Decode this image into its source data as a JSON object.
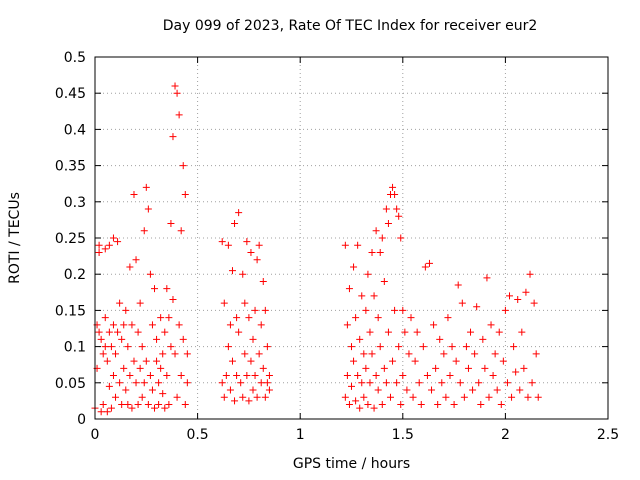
{
  "chart_data": {
    "type": "scatter",
    "title": "Day 099 of 2023, Rate Of TEC Index for receiver eur2",
    "xlabel": "GPS time / hours",
    "ylabel": "ROTI / TECUs",
    "xlim": [
      0,
      2.5
    ],
    "ylim": [
      0,
      0.5
    ],
    "xticks": [
      "0",
      "0.5",
      "1",
      "1.5",
      "2",
      "2.5"
    ],
    "yticks": [
      "0",
      "0.05",
      "0.1",
      "0.15",
      "0.2",
      "0.25",
      "0.3",
      "0.35",
      "0.4",
      "0.45",
      "0.5"
    ],
    "grid": true,
    "marker": "+",
    "color": "#ff0000",
    "series": [
      {
        "points": [
          [
            0.0,
            0.015
          ],
          [
            0.01,
            0.13
          ],
          [
            0.01,
            0.07
          ],
          [
            0.02,
            0.12
          ],
          [
            0.02,
            0.23
          ],
          [
            0.02,
            0.24
          ],
          [
            0.03,
            0.11
          ],
          [
            0.03,
            0.01
          ],
          [
            0.04,
            0.09
          ],
          [
            0.04,
            0.02
          ],
          [
            0.05,
            0.14
          ],
          [
            0.05,
            0.1
          ],
          [
            0.05,
            0.235
          ],
          [
            0.06,
            0.08
          ],
          [
            0.06,
            0.01
          ],
          [
            0.07,
            0.12
          ],
          [
            0.07,
            0.24
          ],
          [
            0.07,
            0.045
          ],
          [
            0.08,
            0.1
          ],
          [
            0.08,
            0.015
          ],
          [
            0.09,
            0.13
          ],
          [
            0.09,
            0.25
          ],
          [
            0.09,
            0.06
          ],
          [
            0.1,
            0.09
          ],
          [
            0.1,
            0.03
          ],
          [
            0.11,
            0.245
          ],
          [
            0.11,
            0.12
          ],
          [
            0.12,
            0.16
          ],
          [
            0.12,
            0.05
          ],
          [
            0.13,
            0.02
          ],
          [
            0.13,
            0.11
          ],
          [
            0.14,
            0.13
          ],
          [
            0.14,
            0.07
          ],
          [
            0.15,
            0.15
          ],
          [
            0.15,
            0.04
          ],
          [
            0.16,
            0.1
          ],
          [
            0.16,
            0.02
          ],
          [
            0.17,
            0.21
          ],
          [
            0.17,
            0.06
          ],
          [
            0.18,
            0.13
          ],
          [
            0.18,
            0.015
          ],
          [
            0.19,
            0.31
          ],
          [
            0.19,
            0.08
          ],
          [
            0.2,
            0.22
          ],
          [
            0.2,
            0.05
          ],
          [
            0.21,
            0.12
          ],
          [
            0.21,
            0.02
          ],
          [
            0.22,
            0.16
          ],
          [
            0.22,
            0.07
          ],
          [
            0.23,
            0.1
          ],
          [
            0.23,
            0.03
          ],
          [
            0.24,
            0.26
          ],
          [
            0.24,
            0.05
          ],
          [
            0.25,
            0.32
          ],
          [
            0.25,
            0.08
          ],
          [
            0.26,
            0.29
          ],
          [
            0.26,
            0.02
          ],
          [
            0.27,
            0.2
          ],
          [
            0.27,
            0.06
          ],
          [
            0.28,
            0.13
          ],
          [
            0.28,
            0.04
          ],
          [
            0.29,
            0.18
          ],
          [
            0.29,
            0.015
          ],
          [
            0.3,
            0.08
          ],
          [
            0.3,
            0.11
          ],
          [
            0.31,
            0.05
          ],
          [
            0.31,
            0.02
          ],
          [
            0.32,
            0.14
          ],
          [
            0.32,
            0.07
          ],
          [
            0.33,
            0.09
          ],
          [
            0.33,
            0.035
          ],
          [
            0.34,
            0.12
          ],
          [
            0.34,
            0.015
          ],
          [
            0.35,
            0.18
          ],
          [
            0.35,
            0.06
          ],
          [
            0.36,
            0.14
          ],
          [
            0.36,
            0.02
          ],
          [
            0.37,
            0.27
          ],
          [
            0.37,
            0.1
          ],
          [
            0.38,
            0.39
          ],
          [
            0.38,
            0.165
          ],
          [
            0.39,
            0.46
          ],
          [
            0.39,
            0.09
          ],
          [
            0.4,
            0.45
          ],
          [
            0.4,
            0.03
          ],
          [
            0.41,
            0.42
          ],
          [
            0.41,
            0.13
          ],
          [
            0.42,
            0.26
          ],
          [
            0.42,
            0.06
          ],
          [
            0.43,
            0.35
          ],
          [
            0.43,
            0.11
          ],
          [
            0.44,
            0.31
          ],
          [
            0.44,
            0.02
          ],
          [
            0.45,
            0.09
          ],
          [
            0.45,
            0.05
          ],
          [
            0.62,
            0.245
          ],
          [
            0.62,
            0.05
          ],
          [
            0.63,
            0.16
          ],
          [
            0.63,
            0.03
          ],
          [
            0.64,
            0.06
          ],
          [
            0.65,
            0.24
          ],
          [
            0.65,
            0.1
          ],
          [
            0.66,
            0.13
          ],
          [
            0.66,
            0.04
          ],
          [
            0.67,
            0.205
          ],
          [
            0.67,
            0.08
          ],
          [
            0.68,
            0.27
          ],
          [
            0.68,
            0.025
          ],
          [
            0.69,
            0.14
          ],
          [
            0.69,
            0.06
          ],
          [
            0.7,
            0.285
          ],
          [
            0.7,
            0.12
          ],
          [
            0.71,
            0.05
          ],
          [
            0.72,
            0.2
          ],
          [
            0.72,
            0.03
          ],
          [
            0.73,
            0.09
          ],
          [
            0.73,
            0.16
          ],
          [
            0.74,
            0.245
          ],
          [
            0.74,
            0.06
          ],
          [
            0.75,
            0.14
          ],
          [
            0.75,
            0.025
          ],
          [
            0.76,
            0.23
          ],
          [
            0.76,
            0.08
          ],
          [
            0.77,
            0.11
          ],
          [
            0.77,
            0.04
          ],
          [
            0.78,
            0.15
          ],
          [
            0.78,
            0.06
          ],
          [
            0.79,
            0.22
          ],
          [
            0.79,
            0.03
          ],
          [
            0.8,
            0.24
          ],
          [
            0.8,
            0.09
          ],
          [
            0.81,
            0.13
          ],
          [
            0.81,
            0.05
          ],
          [
            0.82,
            0.19
          ],
          [
            0.82,
            0.07
          ],
          [
            0.83,
            0.15
          ],
          [
            0.83,
            0.03
          ],
          [
            0.84,
            0.1
          ],
          [
            0.84,
            0.05
          ],
          [
            0.85,
            0.06
          ],
          [
            0.85,
            0.04
          ],
          [
            1.22,
            0.24
          ],
          [
            1.22,
            0.03
          ],
          [
            1.23,
            0.13
          ],
          [
            1.23,
            0.06
          ],
          [
            1.24,
            0.18
          ],
          [
            1.24,
            0.02
          ],
          [
            1.25,
            0.1
          ],
          [
            1.25,
            0.045
          ],
          [
            1.26,
            0.21
          ],
          [
            1.26,
            0.08
          ],
          [
            1.27,
            0.14
          ],
          [
            1.27,
            0.025
          ],
          [
            1.28,
            0.24
          ],
          [
            1.28,
            0.06
          ],
          [
            1.29,
            0.11
          ],
          [
            1.29,
            0.015
          ],
          [
            1.3,
            0.17
          ],
          [
            1.3,
            0.05
          ],
          [
            1.31,
            0.09
          ],
          [
            1.31,
            0.03
          ],
          [
            1.32,
            0.15
          ],
          [
            1.32,
            0.07
          ],
          [
            1.33,
            0.2
          ],
          [
            1.33,
            0.02
          ],
          [
            1.34,
            0.12
          ],
          [
            1.34,
            0.05
          ],
          [
            1.35,
            0.23
          ],
          [
            1.35,
            0.09
          ],
          [
            1.36,
            0.17
          ],
          [
            1.36,
            0.015
          ],
          [
            1.37,
            0.26
          ],
          [
            1.37,
            0.06
          ],
          [
            1.38,
            0.14
          ],
          [
            1.38,
            0.04
          ],
          [
            1.39,
            0.23
          ],
          [
            1.39,
            0.1
          ],
          [
            1.4,
            0.25
          ],
          [
            1.4,
            0.02
          ],
          [
            1.41,
            0.19
          ],
          [
            1.41,
            0.07
          ],
          [
            1.42,
            0.29
          ],
          [
            1.42,
            0.05
          ],
          [
            1.43,
            0.27
          ],
          [
            1.43,
            0.12
          ],
          [
            1.44,
            0.31
          ],
          [
            1.44,
            0.03
          ],
          [
            1.45,
            0.32
          ],
          [
            1.45,
            0.08
          ],
          [
            1.46,
            0.31
          ],
          [
            1.46,
            0.15
          ],
          [
            1.47,
            0.29
          ],
          [
            1.47,
            0.05
          ],
          [
            1.48,
            0.28
          ],
          [
            1.48,
            0.1
          ],
          [
            1.49,
            0.25
          ],
          [
            1.49,
            0.02
          ],
          [
            1.5,
            0.15
          ],
          [
            1.5,
            0.06
          ],
          [
            1.51,
            0.12
          ],
          [
            1.52,
            0.04
          ],
          [
            1.53,
            0.09
          ],
          [
            1.54,
            0.14
          ],
          [
            1.55,
            0.03
          ],
          [
            1.56,
            0.08
          ],
          [
            1.57,
            0.12
          ],
          [
            1.58,
            0.05
          ],
          [
            1.59,
            0.02
          ],
          [
            1.6,
            0.1
          ],
          [
            1.61,
            0.21
          ],
          [
            1.62,
            0.06
          ],
          [
            1.63,
            0.215
          ],
          [
            1.64,
            0.04
          ],
          [
            1.65,
            0.13
          ],
          [
            1.66,
            0.07
          ],
          [
            1.67,
            0.02
          ],
          [
            1.68,
            0.11
          ],
          [
            1.69,
            0.05
          ],
          [
            1.7,
            0.09
          ],
          [
            1.71,
            0.03
          ],
          [
            1.72,
            0.14
          ],
          [
            1.73,
            0.06
          ],
          [
            1.74,
            0.1
          ],
          [
            1.75,
            0.02
          ],
          [
            1.76,
            0.08
          ],
          [
            1.77,
            0.185
          ],
          [
            1.78,
            0.05
          ],
          [
            1.79,
            0.16
          ],
          [
            1.8,
            0.03
          ],
          [
            1.81,
            0.1
          ],
          [
            1.82,
            0.07
          ],
          [
            1.83,
            0.12
          ],
          [
            1.84,
            0.04
          ],
          [
            1.85,
            0.09
          ],
          [
            1.86,
            0.155
          ],
          [
            1.87,
            0.05
          ],
          [
            1.88,
            0.02
          ],
          [
            1.89,
            0.11
          ],
          [
            1.9,
            0.07
          ],
          [
            1.91,
            0.195
          ],
          [
            1.92,
            0.03
          ],
          [
            1.93,
            0.13
          ],
          [
            1.94,
            0.06
          ],
          [
            1.95,
            0.09
          ],
          [
            1.96,
            0.04
          ],
          [
            1.97,
            0.12
          ],
          [
            1.98,
            0.02
          ],
          [
            1.99,
            0.08
          ],
          [
            2.0,
            0.15
          ],
          [
            2.01,
            0.05
          ],
          [
            2.02,
            0.17
          ],
          [
            2.03,
            0.03
          ],
          [
            2.04,
            0.1
          ],
          [
            2.05,
            0.065
          ],
          [
            2.06,
            0.165
          ],
          [
            2.07,
            0.04
          ],
          [
            2.08,
            0.12
          ],
          [
            2.09,
            0.07
          ],
          [
            2.1,
            0.175
          ],
          [
            2.11,
            0.03
          ],
          [
            2.12,
            0.2
          ],
          [
            2.13,
            0.05
          ],
          [
            2.14,
            0.16
          ],
          [
            2.15,
            0.09
          ],
          [
            2.16,
            0.03
          ]
        ]
      }
    ]
  }
}
